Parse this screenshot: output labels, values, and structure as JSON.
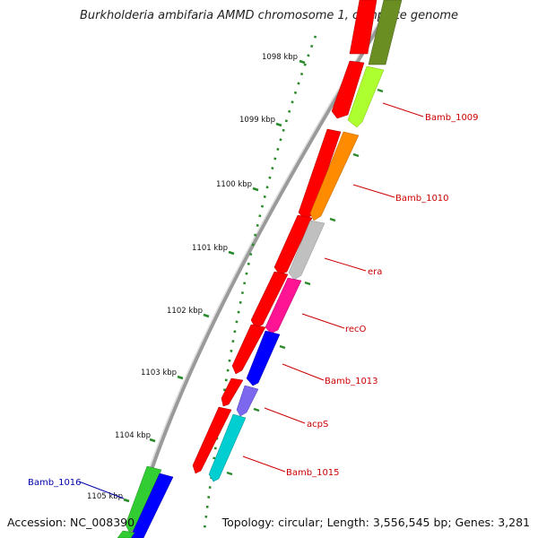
{
  "header": {
    "title": "Burkholderia ambifaria AMMD chromosome 1, complete genome"
  },
  "footer": {
    "accession": "Accession: NC_008390",
    "topology": "Topology: circular; Length: 3,556,545 bp; Genes: 3,281"
  },
  "ticks": [
    "1098 kbp",
    "1099 kbp",
    "1100 kbp",
    "1101 kbp",
    "1102 kbp",
    "1103 kbp",
    "1104 kbp",
    "1105 kbp"
  ],
  "gene_labels": [
    {
      "text": "Bamb_1009",
      "color": "#cc0000"
    },
    {
      "text": "Bamb_1010",
      "color": "#cc0000"
    },
    {
      "text": "era",
      "color": "#cc0000"
    },
    {
      "text": "recO",
      "color": "#cc0000"
    },
    {
      "text": "Bamb_1013",
      "color": "#cc0000"
    },
    {
      "text": "acpS",
      "color": "#cc0000"
    },
    {
      "text": "Bamb_1015",
      "color": "#cc0000"
    },
    {
      "text": "Bamb_1016",
      "color": "#0000aa"
    }
  ],
  "colors": {
    "backbone": "#888888",
    "tick_green": "#2a8a2a",
    "cds_red": "#ff0000"
  }
}
